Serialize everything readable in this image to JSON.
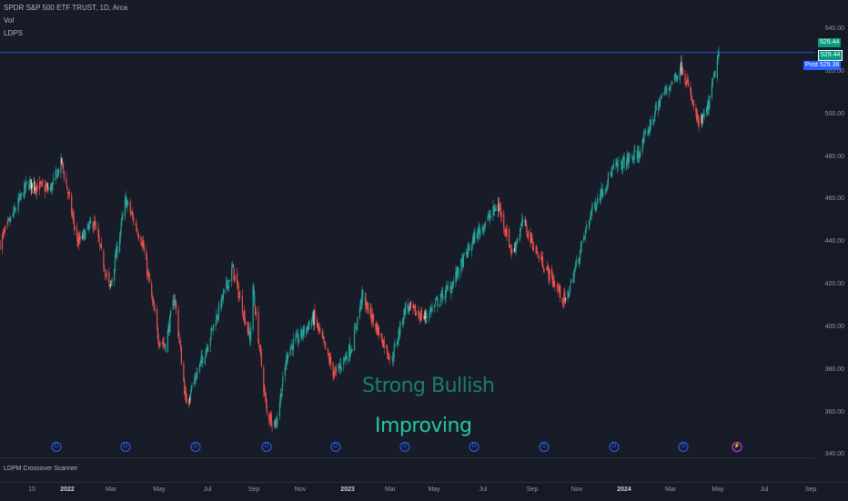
{
  "legend": {
    "symbol": "SPDR S&P 500 ETF TRUST, 1D, Arca",
    "vol": "Vol",
    "indicator": "LDPS"
  },
  "price_axis": {
    "ticks": [
      "540.00",
      "520.00",
      "500.00",
      "480.00",
      "460.00",
      "440.00",
      "420.00",
      "400.00",
      "380.00",
      "360.00",
      "340.00"
    ],
    "last_price": "529.44",
    "last_price_2": "529.44",
    "post_label": "Post",
    "post_price": "529.38",
    "colors": {
      "last": "#089981",
      "post": "#2962ff"
    }
  },
  "time_axis": {
    "labels": [
      {
        "text": "15",
        "bold": false
      },
      {
        "text": "2022",
        "bold": true
      },
      {
        "text": "Mar",
        "bold": false
      },
      {
        "text": "May",
        "bold": false
      },
      {
        "text": "Jul",
        "bold": false
      },
      {
        "text": "Sep",
        "bold": false
      },
      {
        "text": "Nov",
        "bold": false
      },
      {
        "text": "2023",
        "bold": true
      },
      {
        "text": "Mar",
        "bold": false
      },
      {
        "text": "May",
        "bold": false
      },
      {
        "text": "Jul",
        "bold": false
      },
      {
        "text": "Sep",
        "bold": false
      },
      {
        "text": "Nov",
        "bold": false
      },
      {
        "text": "2024",
        "bold": true
      },
      {
        "text": "Mar",
        "bold": false
      },
      {
        "text": "May",
        "bold": false
      },
      {
        "text": "Jul",
        "bold": false
      },
      {
        "text": "Sep",
        "bold": false
      }
    ]
  },
  "status": {
    "strong": "Strong Bullish",
    "improving": "Improving"
  },
  "markers": {
    "symbol": "D",
    "alt_symbol": "⚡"
  },
  "sub_pane": {
    "title": "LDPM Crossover Scanner"
  },
  "colors": {
    "bull": "#26a69a",
    "bear": "#ef5350",
    "neutral": "#f0e0c8"
  },
  "chart_data": {
    "type": "candlestick",
    "x_range": [
      "2021-10-15",
      "2024-09-15"
    ],
    "ylim": [
      335,
      545
    ],
    "anchors": [
      [
        "2021-10-15",
        440
      ],
      [
        "2021-11-20",
        468
      ],
      [
        "2021-12-20",
        465
      ],
      [
        "2022-01-04",
        478
      ],
      [
        "2022-01-25",
        440
      ],
      [
        "2022-02-15",
        450
      ],
      [
        "2022-03-08",
        418
      ],
      [
        "2022-03-29",
        460
      ],
      [
        "2022-04-20",
        440
      ],
      [
        "2022-05-11",
        395
      ],
      [
        "2022-05-20",
        392
      ],
      [
        "2022-06-01",
        415
      ],
      [
        "2022-06-16",
        365
      ],
      [
        "2022-07-10",
        388
      ],
      [
        "2022-08-16",
        428
      ],
      [
        "2022-09-08",
        395
      ],
      [
        "2022-09-12",
        418
      ],
      [
        "2022-09-30",
        360
      ],
      [
        "2022-10-12",
        355
      ],
      [
        "2022-10-28",
        390
      ],
      [
        "2022-11-10",
        395
      ],
      [
        "2022-12-01",
        405
      ],
      [
        "2022-12-28",
        378
      ],
      [
        "2023-01-20",
        392
      ],
      [
        "2023-02-02",
        415
      ],
      [
        "2023-03-13",
        385
      ],
      [
        "2023-03-31",
        410
      ],
      [
        "2023-04-25",
        405
      ],
      [
        "2023-05-30",
        420
      ],
      [
        "2023-06-30",
        443
      ],
      [
        "2023-07-31",
        458
      ],
      [
        "2023-08-18",
        435
      ],
      [
        "2023-09-01",
        450
      ],
      [
        "2023-09-20",
        435
      ],
      [
        "2023-10-27",
        412
      ],
      [
        "2023-11-30",
        455
      ],
      [
        "2023-12-29",
        475
      ],
      [
        "2024-01-31",
        482
      ],
      [
        "2024-02-29",
        508
      ],
      [
        "2024-03-28",
        523
      ],
      [
        "2024-04-19",
        495
      ],
      [
        "2024-04-30",
        502
      ],
      [
        "2024-05-15",
        529
      ]
    ]
  }
}
